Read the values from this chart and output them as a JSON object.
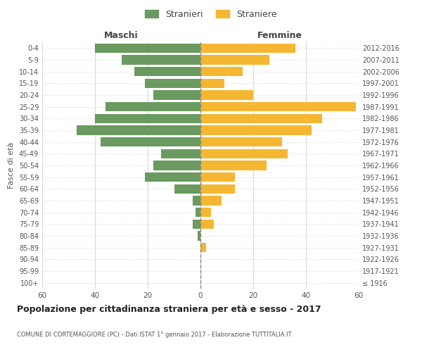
{
  "age_groups": [
    "100+",
    "95-99",
    "90-94",
    "85-89",
    "80-84",
    "75-79",
    "70-74",
    "65-69",
    "60-64",
    "55-59",
    "50-54",
    "45-49",
    "40-44",
    "35-39",
    "30-34",
    "25-29",
    "20-24",
    "15-19",
    "10-14",
    "5-9",
    "0-4"
  ],
  "birth_years": [
    "≤ 1916",
    "1917-1921",
    "1922-1926",
    "1927-1931",
    "1932-1936",
    "1937-1941",
    "1942-1946",
    "1947-1951",
    "1952-1956",
    "1957-1961",
    "1962-1966",
    "1967-1971",
    "1972-1976",
    "1977-1981",
    "1982-1986",
    "1987-1991",
    "1992-1996",
    "1997-2001",
    "2002-2006",
    "2007-2011",
    "2012-2016"
  ],
  "maschi": [
    0,
    0,
    0,
    0,
    1,
    3,
    2,
    3,
    10,
    21,
    18,
    15,
    38,
    47,
    40,
    36,
    18,
    21,
    25,
    30,
    40
  ],
  "femmine": [
    0,
    0,
    0,
    2,
    0,
    5,
    4,
    8,
    13,
    13,
    25,
    33,
    31,
    42,
    46,
    59,
    20,
    9,
    16,
    26,
    36
  ],
  "maschi_color": "#6a9a5f",
  "femmine_color": "#f5b731",
  "background_color": "#ffffff",
  "grid_color": "#d9d9d9",
  "title": "Popolazione per cittadinanza straniera per età e sesso - 2017",
  "subtitle": "COMUNE DI CORTEMAGGIORE (PC) - Dati ISTAT 1° gennaio 2017 - Elaborazione TUTTITALIA.IT",
  "xlabel_left": "Maschi",
  "xlabel_right": "Femmine",
  "ylabel_left": "Fasce di età",
  "legend_maschi": "Stranieri",
  "legend_femmine": "Straniere",
  "xlim": 60,
  "bar_height": 0.8
}
